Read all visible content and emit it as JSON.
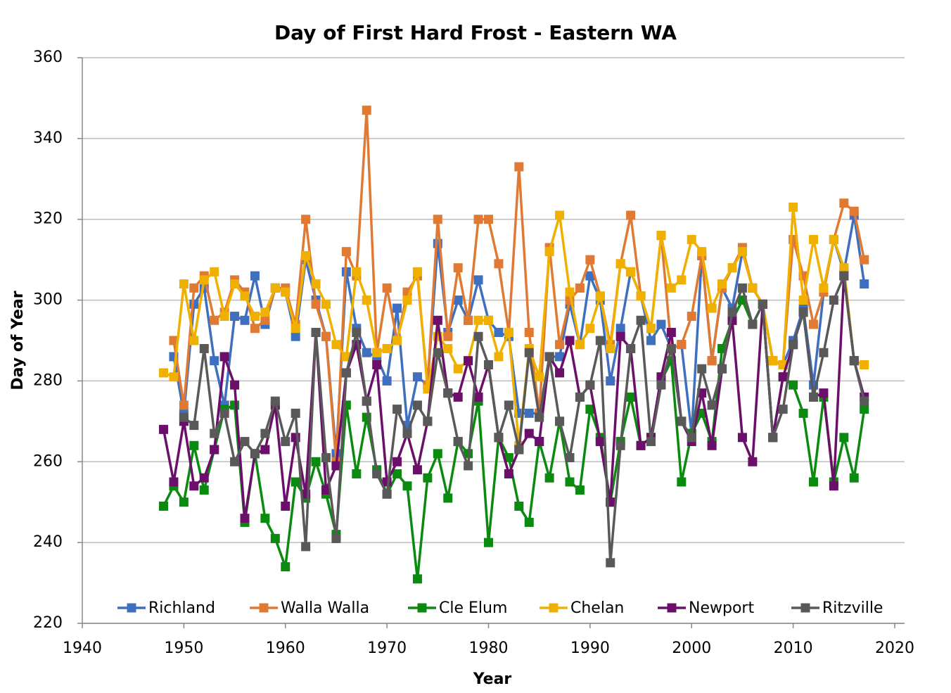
{
  "chart_data": {
    "type": "line",
    "title": "Day of First Hard Frost - Eastern WA",
    "xlabel": "Year",
    "ylabel": "Day of Year",
    "x": [
      1948,
      1949,
      1950,
      1951,
      1952,
      1953,
      1954,
      1955,
      1956,
      1957,
      1958,
      1959,
      1960,
      1961,
      1962,
      1963,
      1964,
      1965,
      1966,
      1967,
      1968,
      1969,
      1970,
      1971,
      1972,
      1973,
      1974,
      1975,
      1976,
      1977,
      1978,
      1979,
      1980,
      1981,
      1982,
      1983,
      1984,
      1985,
      1986,
      1987,
      1988,
      1989,
      1990,
      1991,
      1992,
      1993,
      1994,
      1995,
      1996,
      1997,
      1998,
      1999,
      2000,
      2001,
      2002,
      2003,
      2004,
      2005,
      2006,
      2007,
      2008,
      2009,
      2010,
      2011,
      2012,
      2013,
      2014,
      2015,
      2016,
      2017
    ],
    "series": [
      {
        "name": "Richland",
        "color": "#3f6fbf",
        "values": [
          null,
          286,
          272,
          299,
          303,
          285,
          274,
          296,
          295,
          306,
          294,
          303,
          302,
          291,
          310,
          300,
          291,
          262,
          307,
          293,
          287,
          286,
          280,
          298,
          269,
          281,
          279,
          314,
          292,
          300,
          295,
          305,
          295,
          292,
          291,
          272,
          272,
          272,
          286,
          286,
          299,
          289,
          306,
          300,
          280,
          293,
          307,
          301,
          290,
          294,
          288,
          289,
          267,
          311,
          285,
          303,
          298,
          312,
          303,
          299,
          285,
          284,
          290,
          298,
          279,
          302,
          315,
          307,
          321,
          304
        ]
      },
      {
        "name": "Walla Walla",
        "color": "#e07a32",
        "values": [
          null,
          290,
          274,
          303,
          306,
          295,
          297,
          305,
          302,
          293,
          295,
          303,
          303,
          294,
          320,
          299,
          291,
          260,
          312,
          306,
          347,
          287,
          303,
          290,
          302,
          306,
          279,
          320,
          291,
          308,
          295,
          320,
          320,
          309,
          292,
          333,
          292,
          272,
          313,
          289,
          300,
          303,
          310,
          301,
          289,
          309,
          321,
          301,
          293,
          316,
          288,
          289,
          296,
          311,
          285,
          303,
          308,
          313,
          303,
          299,
          285,
          284,
          315,
          306,
          294,
          302,
          315,
          324,
          322,
          310
        ]
      },
      {
        "name": "Cle Elum",
        "color": "#0b8a10",
        "values": [
          249,
          254,
          250,
          264,
          253,
          263,
          273,
          274,
          245,
          262,
          246,
          241,
          234,
          255,
          251,
          260,
          252,
          242,
          274,
          257,
          271,
          258,
          252,
          257,
          254,
          231,
          256,
          262,
          251,
          265,
          262,
          275,
          240,
          266,
          261,
          249,
          245,
          265,
          256,
          270,
          255,
          253,
          273,
          266,
          250,
          265,
          276,
          264,
          266,
          280,
          285,
          255,
          267,
          272,
          265,
          288,
          295,
          300,
          294,
          299,
          266,
          281,
          279,
          272,
          255,
          276,
          255,
          266,
          256,
          273
        ]
      },
      {
        "name": "Chelan",
        "color": "#f0b000",
        "values": [
          282,
          281,
          304,
          290,
          305,
          307,
          296,
          304,
          301,
          296,
          297,
          303,
          302,
          293,
          311,
          304,
          299,
          289,
          286,
          307,
          300,
          287,
          288,
          290,
          300,
          307,
          278,
          291,
          288,
          283,
          285,
          295,
          295,
          286,
          292,
          264,
          288,
          281,
          312,
          321,
          302,
          289,
          293,
          301,
          288,
          309,
          307,
          301,
          293,
          316,
          303,
          305,
          315,
          312,
          298,
          304,
          308,
          312,
          303,
          299,
          285,
          284,
          323,
          300,
          315,
          303,
          315,
          308,
          285,
          284
        ]
      },
      {
        "name": "Newport",
        "color": "#6b0f6b",
        "values": [
          268,
          255,
          270,
          254,
          256,
          263,
          286,
          279,
          246,
          262,
          263,
          274,
          249,
          266,
          252,
          292,
          253,
          259,
          282,
          289,
          275,
          284,
          255,
          260,
          267,
          258,
          270,
          295,
          277,
          276,
          285,
          276,
          284,
          266,
          257,
          263,
          267,
          265,
          286,
          282,
          290,
          276,
          279,
          265,
          250,
          291,
          288,
          264,
          266,
          281,
          292,
          270,
          265,
          277,
          264,
          283,
          295,
          266,
          260,
          299,
          266,
          281,
          289,
          297,
          276,
          277,
          254,
          306,
          285,
          276
        ]
      },
      {
        "name": "Ritzville",
        "color": "#595959",
        "values": [
          null,
          null,
          271,
          269,
          288,
          267,
          272,
          260,
          265,
          262,
          267,
          275,
          265,
          272,
          239,
          292,
          261,
          241,
          282,
          292,
          275,
          257,
          252,
          273,
          267,
          274,
          270,
          287,
          277,
          265,
          259,
          291,
          284,
          266,
          274,
          263,
          287,
          271,
          286,
          270,
          261,
          276,
          279,
          290,
          235,
          264,
          288,
          295,
          265,
          279,
          288,
          270,
          266,
          283,
          274,
          283,
          297,
          303,
          294,
          299,
          266,
          273,
          289,
          297,
          276,
          287,
          300,
          306,
          285,
          275
        ]
      }
    ],
    "xlim": [
      1940,
      2020
    ],
    "xticks": [
      1940,
      1950,
      1960,
      1970,
      1980,
      1990,
      2000,
      2010,
      2020
    ],
    "ylim": [
      220,
      360
    ],
    "yticks": [
      220,
      240,
      260,
      280,
      300,
      320,
      340,
      360
    ],
    "grid": true,
    "legend": "bottom"
  }
}
